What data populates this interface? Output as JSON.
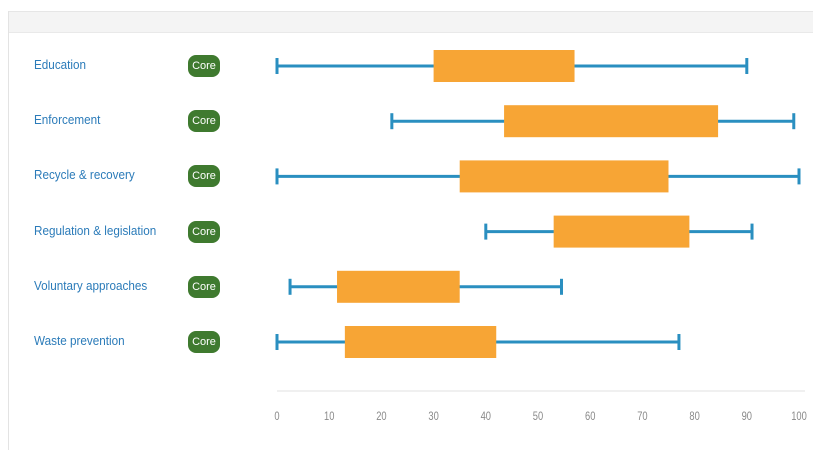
{
  "chart_data": {
    "type": "boxplot",
    "xlim": [
      0,
      100
    ],
    "xticks": [
      0,
      10,
      20,
      30,
      40,
      50,
      60,
      70,
      80,
      90,
      100
    ],
    "tick_labels": [
      "0",
      "10",
      "20",
      "30",
      "40",
      "50",
      "60",
      "70",
      "80",
      "90",
      "100"
    ],
    "badge_label": "Core",
    "rows": [
      {
        "label": "Education",
        "min": 0,
        "q1": 30,
        "q3": 57,
        "max": 90
      },
      {
        "label": "Enforcement",
        "min": 22,
        "q1": 43.5,
        "q3": 84.5,
        "max": 99
      },
      {
        "label": "Recycle & recovery",
        "min": 0,
        "q1": 35,
        "q3": 75,
        "max": 100
      },
      {
        "label": "Regulation & legislation",
        "min": 40,
        "q1": 53,
        "q3": 79,
        "max": 91
      },
      {
        "label": "Voluntary approaches",
        "min": 2.5,
        "q1": 11.5,
        "q3": 35,
        "max": 54.5
      },
      {
        "label": "Waste prevention",
        "min": 0,
        "q1": 13,
        "q3": 42,
        "max": 77
      }
    ],
    "colors": {
      "box": "#f7a535",
      "whisker": "#2a8fc0",
      "badge": "#3f7a2f",
      "label": "#2b7bb9",
      "axis": "#e2e2e2",
      "tick_label": "#8a8a8a"
    },
    "grid": false
  }
}
